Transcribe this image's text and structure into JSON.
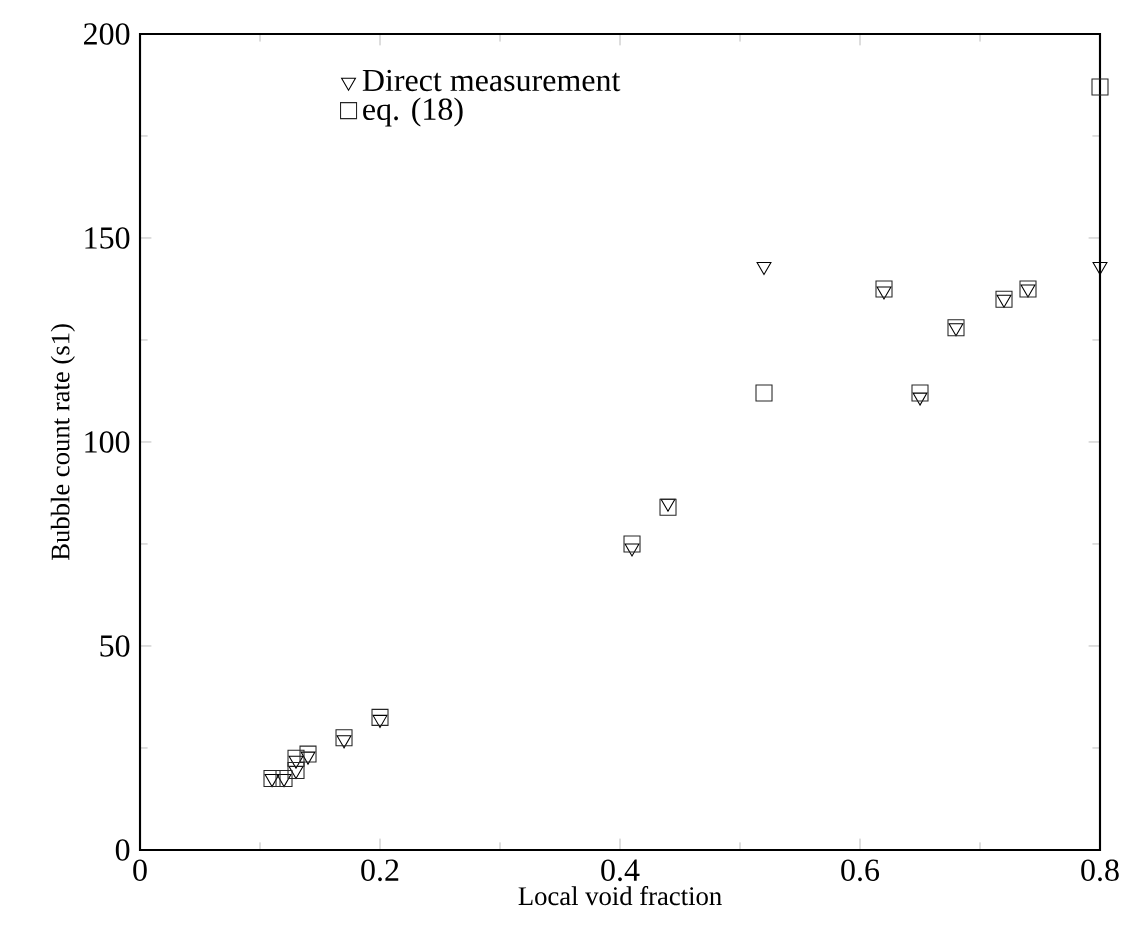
{
  "chart_data": {
    "type": "scatter",
    "xlabel": "Local void fraction",
    "ylabel": "Bubble count rate (s1)",
    "xlim": [
      0,
      0.8
    ],
    "ylim": [
      0,
      200
    ],
    "xticks": [
      0,
      0.2,
      0.4,
      0.6,
      0.8
    ],
    "yticks": [
      0,
      50,
      100,
      150,
      200
    ],
    "legend": "top left",
    "grid": false,
    "series": [
      {
        "name": "Direct measurement",
        "color": "#000000",
        "marker": "triangle",
        "x": [
          0.11,
          0.12,
          0.13,
          0.13,
          0.14,
          0.17,
          0.2,
          0.41,
          0.44,
          0.52,
          0.62,
          0.65,
          0.68,
          0.72,
          0.74,
          0.8
        ],
        "values": [
          17.5,
          17.5,
          19.5,
          22,
          23,
          27,
          32,
          74,
          85,
          143,
          137,
          111,
          128,
          135,
          137.5,
          143
        ]
      },
      {
        "name": "eq. (18)",
        "color": "#262626",
        "marker": "square",
        "x": [
          0.11,
          0.12,
          0.13,
          0.13,
          0.14,
          0.17,
          0.2,
          0.41,
          0.44,
          0.52,
          0.62,
          0.65,
          0.68,
          0.72,
          0.74,
          0.8
        ],
        "values": [
          17.5,
          17.5,
          19.5,
          22.5,
          23.5,
          27.5,
          32.5,
          75,
          84,
          112,
          137.5,
          112,
          128,
          135,
          137.5,
          187
        ]
      }
    ]
  }
}
